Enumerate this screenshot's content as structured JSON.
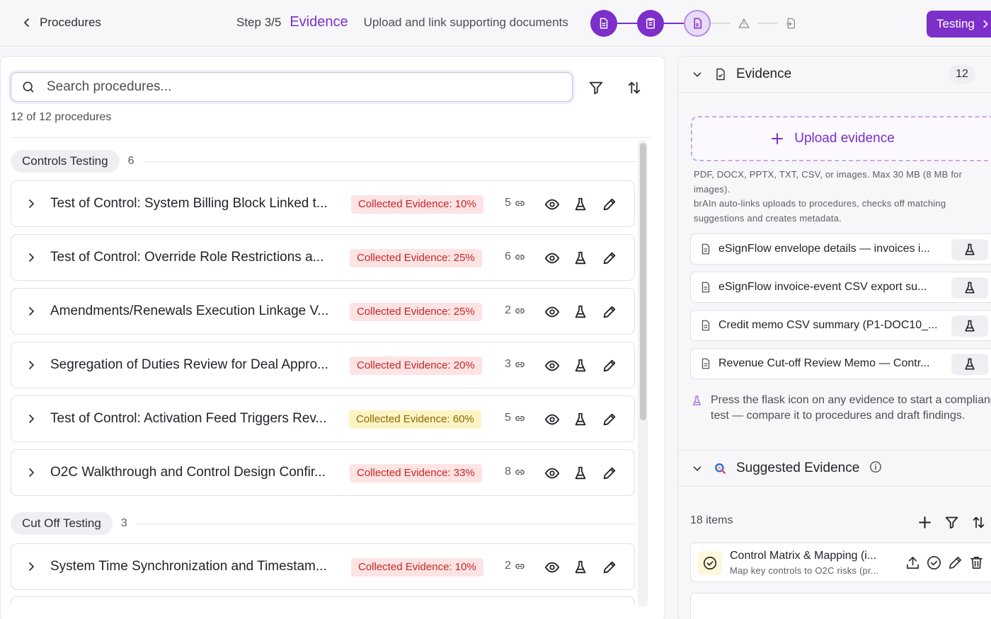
{
  "header": {
    "back_label": "Procedures",
    "step_count": "Step 3/5",
    "step_name": "Evidence",
    "step_description": "Upload and link supporting documents",
    "next_button": "Testing",
    "accent_color": "#7c2fc9"
  },
  "procedures": {
    "search_placeholder": "Search procedures...",
    "count_text": "12 of 12 procedures",
    "groups": [
      {
        "name": "Controls Testing",
        "count": "6",
        "rows": [
          {
            "title": "Test of Control: System Billing Block Linked t...",
            "badge": "Collected Evidence: 10%",
            "badge_color": "red",
            "links": "5"
          },
          {
            "title": "Test of Control: Override Role Restrictions a...",
            "badge": "Collected Evidence: 25%",
            "badge_color": "red",
            "links": "6"
          },
          {
            "title": "Amendments/Renewals Execution Linkage V...",
            "badge": "Collected Evidence: 25%",
            "badge_color": "red",
            "links": "2"
          },
          {
            "title": "Segregation of Duties Review for Deal Appro...",
            "badge": "Collected Evidence: 20%",
            "badge_color": "red",
            "links": "3"
          },
          {
            "title": "Test of Control: Activation Feed Triggers Rev...",
            "badge": "Collected Evidence: 60%",
            "badge_color": "yellow",
            "links": "5"
          },
          {
            "title": "O2C Walkthrough and Control Design Confir...",
            "badge": "Collected Evidence: 33%",
            "badge_color": "red",
            "links": "8"
          }
        ]
      },
      {
        "name": "Cut Off Testing",
        "count": "3",
        "rows": [
          {
            "title": "System Time Synchronization and Timestam...",
            "badge": "Collected Evidence: 10%",
            "badge_color": "red",
            "links": "2"
          }
        ]
      }
    ]
  },
  "evidence": {
    "title": "Evidence",
    "count": "12",
    "upload_label": "Upload evidence",
    "upload_help_1": "PDF, DOCX, PPTX, TXT, CSV, or images. Max 30 MB (8 MB for images).",
    "upload_help_2": "brAIn auto-links uploads to procedures, checks off matching suggestions and creates metadata.",
    "items": [
      {
        "title": "eSignFlow envelope details — invoices i..."
      },
      {
        "title": "eSignFlow invoice-event CSV export su..."
      },
      {
        "title": "Credit memo CSV summary (P1-DOC10_..."
      },
      {
        "title": "Revenue Cut-off Review Memo — Contr..."
      }
    ],
    "tip": "Press the flask icon on any evidence to start a compliance test — compare it to procedures and draft findings."
  },
  "suggested": {
    "title": "Suggested Evidence",
    "items_count": "18 items",
    "items": [
      {
        "title": "Control Matrix & Mapping (i...",
        "subtitle": "Map key controls to O2C risks (pr..."
      }
    ]
  }
}
